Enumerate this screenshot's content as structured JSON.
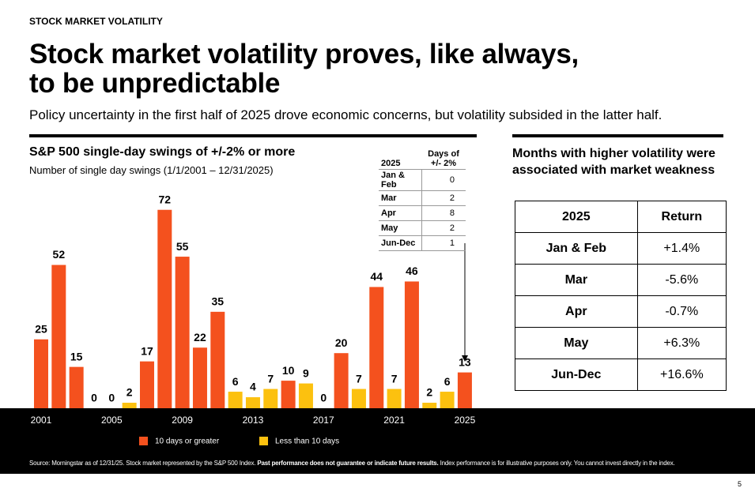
{
  "header": {
    "kicker": "STOCK MARKET VOLATILITY",
    "title": [
      "Stock market volatility proves, like always,",
      "to be unpredictable"
    ],
    "subtitle": "Policy uncertainty in the first half of 2025 drove economic concerns, but volatility subsided in the latter half."
  },
  "chart_data": {
    "type": "bar",
    "title": "S&P 500 single-day swings of +/-2% or more",
    "subtitle": "Number of single day swings (1/1/2001 – 12/31/2025)",
    "categories": [
      "2001",
      null,
      null,
      null,
      "2005",
      null,
      null,
      null,
      "2009",
      null,
      null,
      null,
      "2013",
      null,
      null,
      null,
      "2017",
      null,
      null,
      null,
      "2021",
      null,
      null,
      null,
      "2025"
    ],
    "series": [
      {
        "name": "10 days or greater",
        "color": "#f4511e",
        "values": [
          25,
          52,
          15,
          null,
          null,
          null,
          17,
          72,
          55,
          22,
          35,
          null,
          null,
          null,
          10,
          null,
          null,
          20,
          null,
          44,
          null,
          46,
          null,
          null,
          13
        ]
      },
      {
        "name": "Less than 10 days",
        "color": "#fcc10f",
        "values": [
          null,
          null,
          null,
          0,
          0,
          2,
          null,
          null,
          null,
          null,
          null,
          6,
          4,
          7,
          null,
          9,
          0,
          null,
          7,
          null,
          7,
          null,
          2,
          6,
          null
        ]
      }
    ]
  },
  "inset_table": {
    "headers": [
      "2025",
      "Days of +/- 2%"
    ],
    "rows": [
      [
        "Jan & Feb",
        0
      ],
      [
        "Mar",
        2
      ],
      [
        "Apr",
        8
      ],
      [
        "May",
        2
      ],
      [
        "Jun-Dec",
        1
      ]
    ]
  },
  "returns_table": {
    "title": "Months with higher volatility were associated with market weakness",
    "headers": [
      "2025",
      "Return"
    ],
    "rows": [
      [
        "Jan & Feb",
        "+1.4%"
      ],
      [
        "Mar",
        "-5.6%"
      ],
      [
        "Apr",
        "-0.7%"
      ],
      [
        "May",
        "+6.3%"
      ],
      [
        "Jun-Dec",
        "+16.6%"
      ]
    ]
  },
  "source": [
    "Source: Morningstar as of 12/31/25. Stock market represented by the S&P 500 Index.",
    "Past performance does not guarantee or indicate future results.",
    "Index performance is for illustrative purposes only. You cannot invest directly in the index."
  ],
  "page_number": "5"
}
